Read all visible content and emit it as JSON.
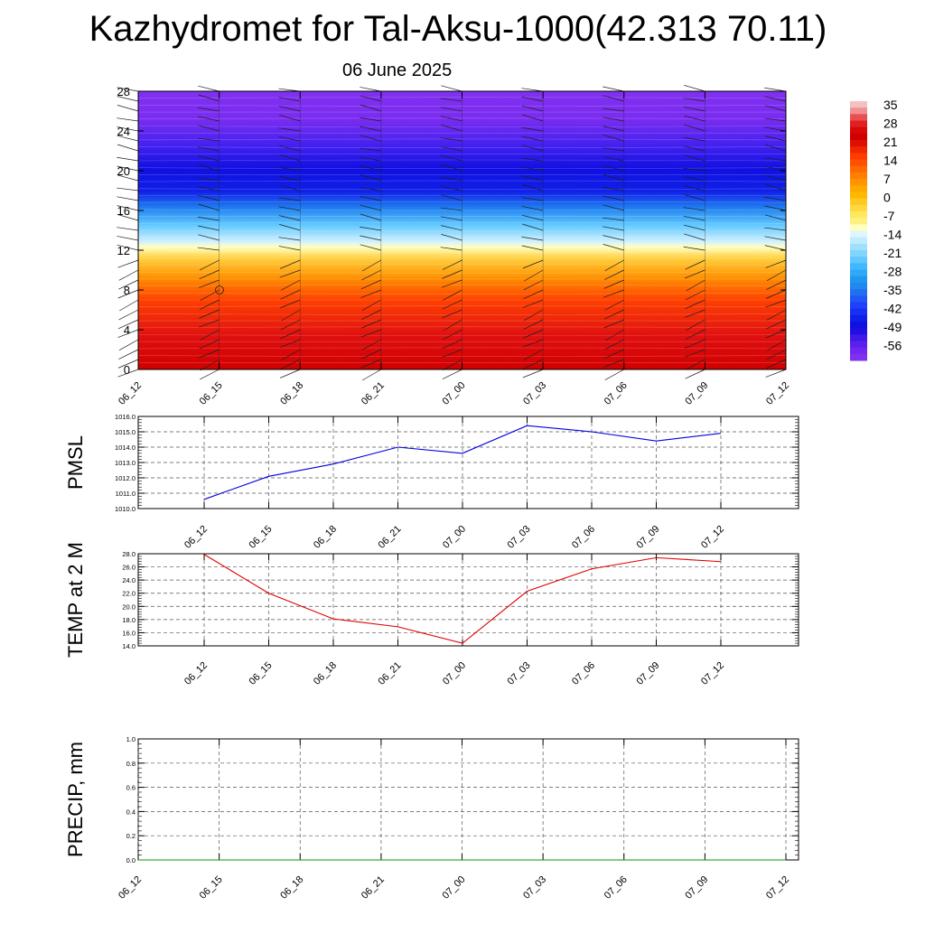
{
  "title": "Kazhydromet for Tal-Aksu-1000(42.313 70.11)",
  "date": "06 June 2025",
  "colorbar": {
    "labels": [
      "35",
      "28",
      "21",
      "14",
      "7",
      "0",
      "-7",
      "-14",
      "-21",
      "-28",
      "-35",
      "-42",
      "-49",
      "-56"
    ],
    "colors": [
      "#f2a0a0",
      "#e02020",
      "#d00000",
      "#ff3b00",
      "#ff8000",
      "#ffb000",
      "#ffe040",
      "#ffffc0",
      "#c0ecff",
      "#50c0ff",
      "#2090f0",
      "#2040ff",
      "#1010e0",
      "#8030f0"
    ]
  },
  "time_labels": [
    "06_12",
    "06_15",
    "06_18",
    "06_21",
    "07_00",
    "07_03",
    "07_06",
    "07_09",
    "07_12"
  ],
  "chart_data": [
    {
      "type": "heatmap",
      "title": "",
      "yticks": [
        "0",
        "4",
        "8",
        "12",
        "16",
        "20",
        "24",
        "28"
      ],
      "ylim": [
        0,
        28
      ],
      "x": [
        "06_12",
        "06_15",
        "06_18",
        "06_21",
        "07_00",
        "07_03",
        "07_06",
        "07_09",
        "07_12"
      ],
      "bands": [
        {
          "from": 0,
          "to": 4,
          "value": 28
        },
        {
          "from": 4,
          "to": 8,
          "value": 20
        },
        {
          "from": 8,
          "to": 11,
          "value": 10
        },
        {
          "from": 11,
          "to": 12.5,
          "value": 0
        },
        {
          "from": 12.5,
          "to": 14,
          "value": -15
        },
        {
          "from": 14,
          "to": 16.5,
          "value": -30
        },
        {
          "from": 16.5,
          "to": 21,
          "value": -50
        },
        {
          "from": 21,
          "to": 24.5,
          "value": -56
        },
        {
          "from": 24.5,
          "to": 28,
          "value": -60
        }
      ]
    },
    {
      "type": "line",
      "ylabel": "PMSL",
      "ylim": [
        1010.0,
        1016.0
      ],
      "yticks": [
        "1016.0",
        "1015.0",
        "1014.0",
        "1013.0",
        "1012.0",
        "1011.0",
        "1010.0"
      ],
      "x": [
        "06_12",
        "06_15",
        "06_18",
        "06_21",
        "07_00",
        "07_03",
        "07_06",
        "07_09",
        "07_12"
      ],
      "series": [
        {
          "values": [
            1010.6,
            1012.1,
            1012.9,
            1014.0,
            1013.6,
            1015.4,
            1015.0,
            1014.4,
            1014.9
          ],
          "color": "#0000e0"
        }
      ]
    },
    {
      "type": "line",
      "ylabel": "TEMP at 2 M",
      "ylim": [
        14.0,
        28.0
      ],
      "yticks": [
        "28.0",
        "26.0",
        "24.0",
        "22.0",
        "20.0",
        "18.0",
        "16.0",
        "14.0"
      ],
      "x": [
        "06_12",
        "06_15",
        "06_18",
        "06_21",
        "07_00",
        "07_03",
        "07_06",
        "07_09",
        "07_12"
      ],
      "series": [
        {
          "values": [
            27.9,
            22.0,
            18.1,
            16.9,
            14.4,
            22.3,
            25.7,
            27.4,
            26.8
          ],
          "color": "#e00000"
        }
      ]
    },
    {
      "type": "line",
      "ylabel": "PRECIP, mm",
      "ylim": [
        0.0,
        1.0
      ],
      "yticks": [
        "1.0",
        "0.8",
        "0.6",
        "0.4",
        "0.2",
        "0.0"
      ],
      "x": [
        "06_12",
        "06_15",
        "06_18",
        "06_21",
        "07_00",
        "07_03",
        "07_06",
        "07_09",
        "07_12"
      ],
      "series": [
        {
          "values": [
            0,
            0,
            0,
            0,
            0,
            0,
            0,
            0,
            0
          ],
          "color": "#00a000"
        }
      ]
    }
  ]
}
